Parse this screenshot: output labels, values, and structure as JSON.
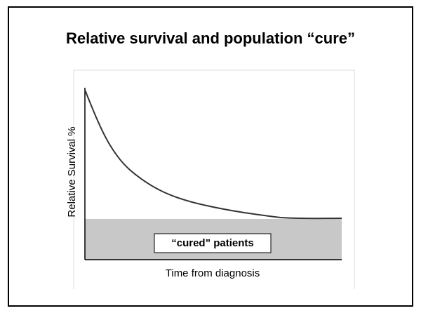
{
  "header": {
    "title": "Relative survival and population “cure”"
  },
  "chart": {
    "y_axis_label": "Relative Survival %",
    "x_axis_label": "Time from diagnosis",
    "annotation": "“cured” patients"
  }
}
